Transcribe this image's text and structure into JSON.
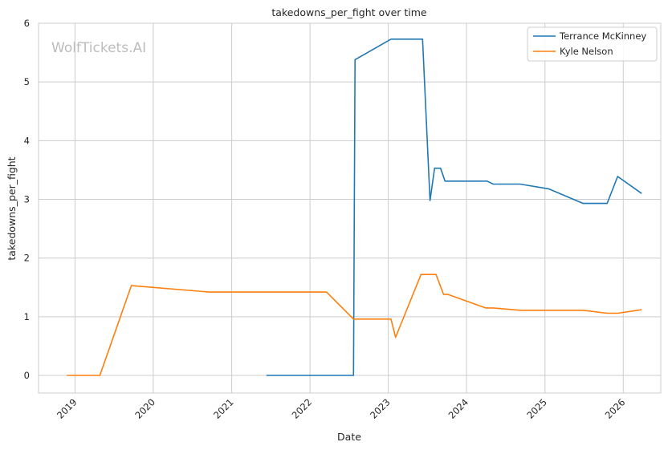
{
  "watermark": "WolfTickets.AI",
  "chart_data": {
    "type": "line",
    "title": "takedowns_per_fight over time",
    "xlabel": "Date",
    "ylabel": "takedowns_per_fight",
    "x_axis": "date",
    "xlim": [
      "2018-07-15",
      "2026-06-25"
    ],
    "ylim": [
      -0.3,
      6
    ],
    "yticks": [
      0,
      1,
      2,
      3,
      4,
      5,
      6
    ],
    "xticks": [
      "2019-01-01",
      "2020-01-01",
      "2021-01-01",
      "2022-01-01",
      "2023-01-01",
      "2024-01-01",
      "2025-01-01",
      "2026-01-01"
    ],
    "xtick_labels": [
      "2019",
      "2020",
      "2021",
      "2022",
      "2023",
      "2024",
      "2025",
      "2026"
    ],
    "grid": true,
    "legend_position": "top-right",
    "series": [
      {
        "name": "Terrance McKinney",
        "color": "#1f77b4",
        "points": [
          [
            "2021-06-12",
            0
          ],
          [
            "2022-07-23",
            0
          ],
          [
            "2022-07-30",
            5.38
          ],
          [
            "2023-01-14",
            5.73
          ],
          [
            "2023-06-10",
            5.73
          ],
          [
            "2023-07-15",
            2.98
          ],
          [
            "2023-08-05",
            3.53
          ],
          [
            "2023-09-02",
            3.53
          ],
          [
            "2023-09-23",
            3.31
          ],
          [
            "2024-04-06",
            3.31
          ],
          [
            "2024-05-04",
            3.26
          ],
          [
            "2024-09-07",
            3.26
          ],
          [
            "2025-01-18",
            3.18
          ],
          [
            "2025-06-28",
            2.93
          ],
          [
            "2025-10-18",
            2.93
          ],
          [
            "2025-12-06",
            3.39
          ],
          [
            "2026-03-28",
            3.1
          ]
        ]
      },
      {
        "name": "Kyle Nelson",
        "color": "#ff7f0e",
        "points": [
          [
            "2018-11-24",
            0
          ],
          [
            "2019-04-27",
            0
          ],
          [
            "2019-09-21",
            1.53
          ],
          [
            "2020-09-19",
            1.42
          ],
          [
            "2022-03-19",
            1.42
          ],
          [
            "2022-07-23",
            0.96
          ],
          [
            "2023-01-14",
            0.96
          ],
          [
            "2023-02-04",
            0.65
          ],
          [
            "2023-06-03",
            1.72
          ],
          [
            "2023-08-12",
            1.72
          ],
          [
            "2023-09-16",
            1.38
          ],
          [
            "2023-10-07",
            1.38
          ],
          [
            "2024-03-30",
            1.15
          ],
          [
            "2024-05-04",
            1.15
          ],
          [
            "2024-09-07",
            1.11
          ],
          [
            "2025-06-28",
            1.11
          ],
          [
            "2025-10-18",
            1.06
          ],
          [
            "2025-12-06",
            1.06
          ],
          [
            "2026-03-28",
            1.12
          ]
        ]
      }
    ]
  }
}
